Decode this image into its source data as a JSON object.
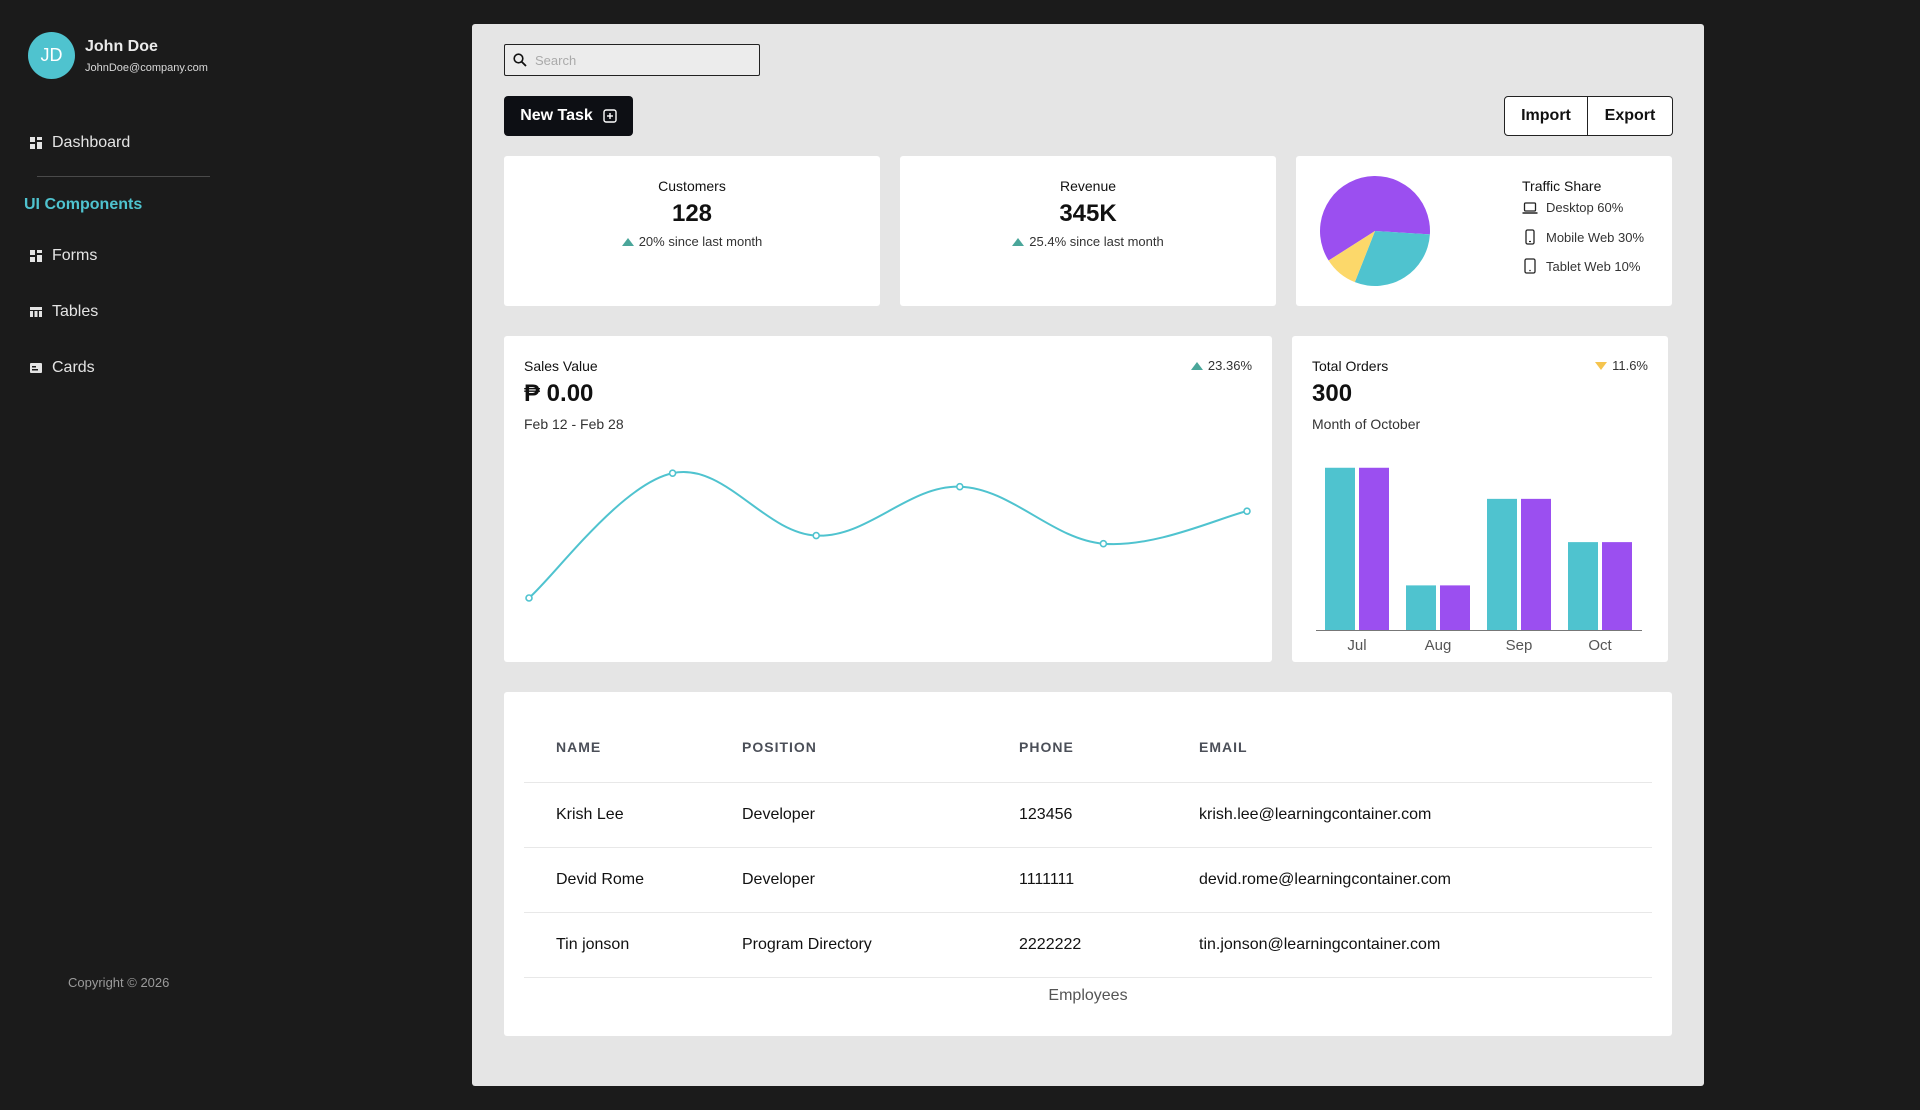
{
  "user": {
    "initials": "JD",
    "name": "John Doe",
    "email": "JohnDoe@company.com"
  },
  "sidebar": {
    "items": [
      {
        "label": "Dashboard",
        "icon": "dashboard-icon"
      },
      {
        "label": "Forms",
        "icon": "forms-icon"
      },
      {
        "label": "Tables",
        "icon": "tables-icon"
      },
      {
        "label": "Cards",
        "icon": "cards-icon"
      }
    ],
    "section_title": "UI Components",
    "copyright": "Copyright © 2026"
  },
  "search": {
    "placeholder": "Search",
    "icon": "search-icon"
  },
  "toolbar": {
    "new_task_label": "New Task",
    "import_label": "Import",
    "export_label": "Export"
  },
  "stats": [
    {
      "title": "Customers",
      "value": "128",
      "change": "20% since last month"
    },
    {
      "title": "Revenue",
      "value": "345K",
      "change": "25.4% since last month"
    }
  ],
  "traffic": {
    "title": "Traffic Share",
    "rows": [
      {
        "label": "Desktop 60%",
        "icon": "laptop-icon"
      },
      {
        "label": "Mobile Web 30%",
        "icon": "mobile-icon"
      },
      {
        "label": "Tablet Web 10%",
        "icon": "tablet-icon"
      }
    ]
  },
  "sales": {
    "label": "Sales Value",
    "value": "₱ 0.00",
    "range": "Feb 12 - Feb 28",
    "change": "23.36%"
  },
  "orders": {
    "label": "Total Orders",
    "value": "300",
    "period": "Month of October",
    "change": "11.6%"
  },
  "colors": {
    "accent": "#4fc3cf",
    "purple": "#9b4ff0",
    "yellow": "#fcd86a",
    "up": "#4aa69a",
    "down": "#f5c44e"
  },
  "chart_data": [
    {
      "type": "pie",
      "categories": [
        "Desktop",
        "Mobile Web",
        "Tablet Web"
      ],
      "values": [
        60,
        30,
        10
      ],
      "colors": [
        "#9b4ff0",
        "#4fc3cf",
        "#fcd86a"
      ]
    },
    {
      "type": "line",
      "x": [
        1,
        2,
        3,
        4,
        5,
        6
      ],
      "values": [
        14,
        60,
        37,
        55,
        34,
        46
      ],
      "ylim": [
        0,
        70
      ]
    },
    {
      "type": "bar",
      "categories": [
        "Jul",
        "Aug",
        "Sep",
        "Oct"
      ],
      "series": [
        {
          "values": [
            120,
            33,
            97,
            65
          ]
        },
        {
          "values": [
            120,
            33,
            97,
            65
          ]
        }
      ],
      "ylim": [
        0,
        125
      ]
    }
  ],
  "table": {
    "headers": [
      "NAME",
      "POSITION",
      "PHONE",
      "EMAIL"
    ],
    "rows": [
      [
        "Krish Lee",
        "Developer",
        "123456",
        "krish.lee@learningcontainer.com"
      ],
      [
        "Devid Rome",
        "Developer",
        "1111111",
        "devid.rome@learningcontainer.com"
      ],
      [
        "Tin jonson",
        "Program Directory",
        "2222222",
        "tin.jonson@learningcontainer.com"
      ]
    ],
    "caption": "Employees"
  }
}
